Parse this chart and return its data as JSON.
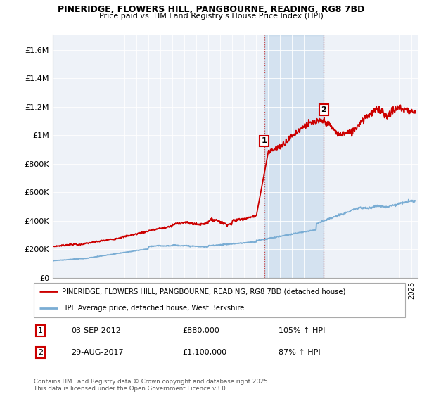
{
  "title_line1": "PINERIDGE, FLOWERS HILL, PANGBOURNE, READING, RG8 7BD",
  "title_line2": "Price paid vs. HM Land Registry's House Price Index (HPI)",
  "ylim": [
    0,
    1700000
  ],
  "yticks": [
    0,
    200000,
    400000,
    600000,
    800000,
    1000000,
    1200000,
    1400000,
    1600000
  ],
  "ytick_labels": [
    "£0",
    "£200K",
    "£400K",
    "£600K",
    "£800K",
    "£1M",
    "£1.2M",
    "£1.4M",
    "£1.6M"
  ],
  "house_color": "#cc0000",
  "hpi_color": "#7aadd4",
  "marker1_year": 2012.67,
  "marker1_price": 880000,
  "marker2_year": 2017.65,
  "marker2_price": 1100000,
  "legend_house": "PINERIDGE, FLOWERS HILL, PANGBOURNE, READING, RG8 7BD (detached house)",
  "legend_hpi": "HPI: Average price, detached house, West Berkshire",
  "marker1_date": "03-SEP-2012",
  "marker1_amount": "£880,000",
  "marker1_pct": "105% ↑ HPI",
  "marker2_date": "29-AUG-2017",
  "marker2_amount": "£1,100,000",
  "marker2_pct": "87% ↑ HPI",
  "footnote": "Contains HM Land Registry data © Crown copyright and database right 2025.\nThis data is licensed under the Open Government Licence v3.0.",
  "background_color": "#ffffff",
  "plot_bg_color": "#eef2f8"
}
